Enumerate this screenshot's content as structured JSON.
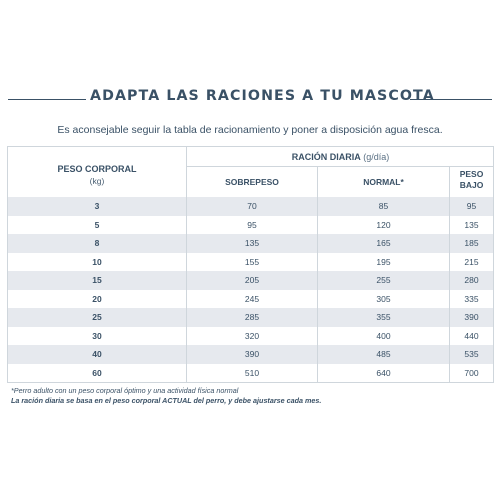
{
  "heading": "ADAPTA LAS RACIONES A TU MASCOTA",
  "intro": "Es aconsejable seguir la tabla de racionamiento y poner a disposición agua fresca.",
  "table": {
    "weight_header": "PESO CORPORAL",
    "weight_unit": "(kg)",
    "ration_header": "RACIÓN DIARIA",
    "ration_unit": "(g/día)",
    "columns": {
      "overweight": "SOBREPESO",
      "normal": "NORMAL*",
      "low_weight_line1": "PESO",
      "low_weight_line2": "BAJO"
    },
    "rows": [
      {
        "weight": "3",
        "overweight": "70",
        "normal": "85",
        "low": "95"
      },
      {
        "weight": "5",
        "overweight": "95",
        "normal": "120",
        "low": "135"
      },
      {
        "weight": "8",
        "overweight": "135",
        "normal": "165",
        "low": "185"
      },
      {
        "weight": "10",
        "overweight": "155",
        "normal": "195",
        "low": "215"
      },
      {
        "weight": "15",
        "overweight": "205",
        "normal": "255",
        "low": "280"
      },
      {
        "weight": "20",
        "overweight": "245",
        "normal": "305",
        "low": "335"
      },
      {
        "weight": "25",
        "overweight": "285",
        "normal": "355",
        "low": "390"
      },
      {
        "weight": "30",
        "overweight": "320",
        "normal": "400",
        "low": "440"
      },
      {
        "weight": "40",
        "overweight": "390",
        "normal": "485",
        "low": "535"
      },
      {
        "weight": "60",
        "overweight": "510",
        "normal": "640",
        "low": "700"
      }
    ]
  },
  "notes": {
    "footnote": "*Perro adulto con un peso corporal óptimo y una actividad física normal",
    "ration_note": "La ración diaria se basa en el peso corporal ACTUAL del perro, y debe ajustarse cada mes."
  },
  "colors": {
    "text": "#3a5166",
    "row_shade": "#e6e9ee",
    "border": "#cfd6dc"
  }
}
